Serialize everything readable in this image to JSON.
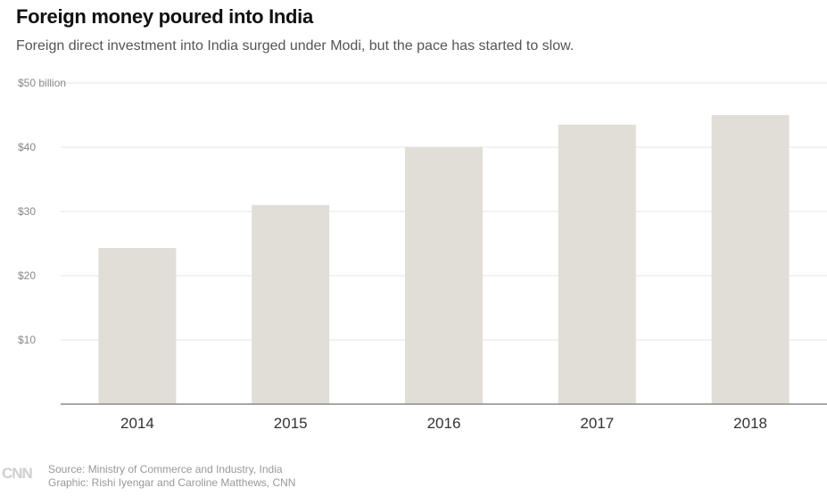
{
  "header": {
    "title": "Foreign money poured into India",
    "subtitle": "Foreign direct investment into India surged under Modi, but the pace has started to slow."
  },
  "chart_data": {
    "type": "bar",
    "categories": [
      "2014",
      "2015",
      "2016",
      "2017",
      "2018"
    ],
    "values": [
      24.3,
      31,
      40,
      43.5,
      45
    ],
    "ylim": [
      0,
      50
    ],
    "yticks": [
      {
        "value": 50,
        "label": "$50 billion"
      },
      {
        "value": 40,
        "label": "$40"
      },
      {
        "value": 30,
        "label": "$30"
      },
      {
        "value": 20,
        "label": "$20"
      },
      {
        "value": 10,
        "label": "$10"
      }
    ],
    "grid": true,
    "colors": {
      "bar": "#e1ded8",
      "grid": "#e6e6e6",
      "axis": "#8a8a8a",
      "tick_label": "#888888",
      "category_label": "#333333"
    }
  },
  "footer": {
    "logo": "CNN",
    "source": "Source: Ministry of Commerce and Industry, India",
    "credit": "Graphic: Rishi Iyengar and Caroline Matthews, CNN"
  }
}
